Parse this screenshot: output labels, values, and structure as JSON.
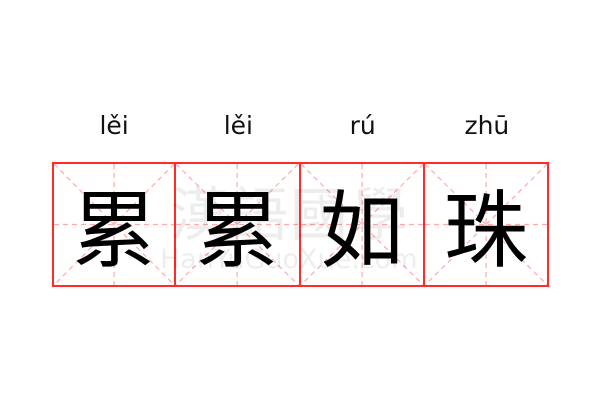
{
  "pinyin": [
    "lěi",
    "lěi",
    "rú",
    "zhū"
  ],
  "characters": [
    "累",
    "累",
    "如",
    "珠"
  ],
  "watermark": {
    "text": "漢語國學",
    "url_text": "HanYuGuoXue.com"
  },
  "colors": {
    "border": "#ff2a2a",
    "guide": "#ffaaaa"
  }
}
